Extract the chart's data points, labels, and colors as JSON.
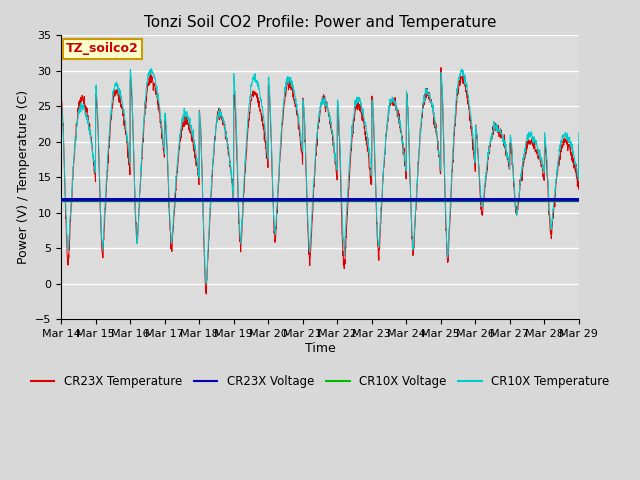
{
  "title": "Tonzi Soil CO2 Profile: Power and Temperature",
  "xlabel": "Time",
  "ylabel": "Power (V) / Temperature (C)",
  "ylim": [
    -5,
    35
  ],
  "yticks": [
    -5,
    0,
    5,
    10,
    15,
    20,
    25,
    30,
    35
  ],
  "x_tick_labels": [
    "Mar 14",
    "Mar 15",
    "Mar 16",
    "Mar 17",
    "Mar 18",
    "Mar 19",
    "Mar 20",
    "Mar 21",
    "Mar 22",
    "Mar 23",
    "Mar 24",
    "Mar 25",
    "Mar 26",
    "Mar 27",
    "Mar 28",
    "Mar 29"
  ],
  "annotation_box": "TZ_soilco2",
  "annotation_box_color": "#ffffcc",
  "annotation_box_edge": "#cc9900",
  "annotation_text_color": "#cc0000",
  "fig_bg_color": "#d8d8d8",
  "plot_bg_color": "#dcdcdc",
  "cr23x_temp_color": "#dd0000",
  "cr23x_volt_color": "#0000bb",
  "cr10x_volt_color": "#00bb00",
  "cr10x_temp_color": "#00cccc",
  "cr23x_voltage_level": 11.85,
  "cr10x_voltage_level": 11.7,
  "legend_labels": [
    "CR23X Temperature",
    "CR23X Voltage",
    "CR10X Voltage",
    "CR10X Temperature"
  ],
  "title_fontsize": 11,
  "axis_label_fontsize": 9,
  "tick_fontsize": 8,
  "legend_fontsize": 8.5
}
